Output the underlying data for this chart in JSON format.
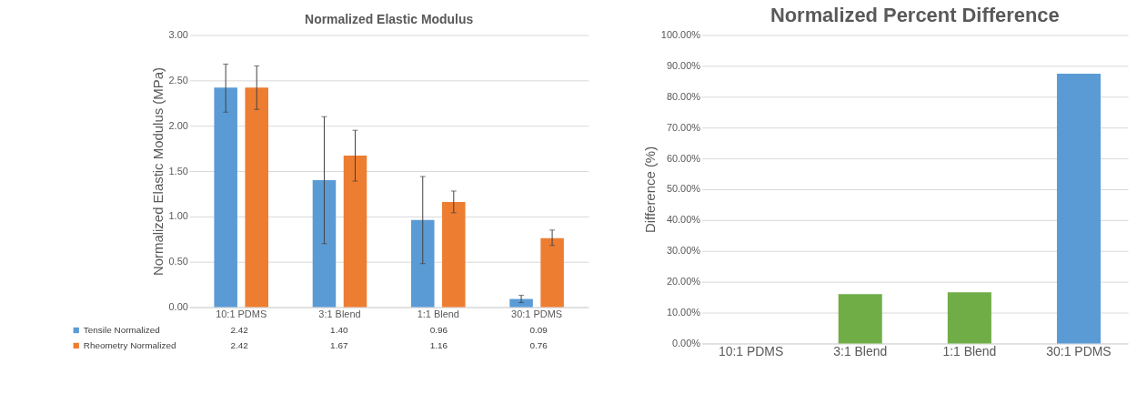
{
  "chart_data": [
    {
      "type": "bar",
      "title": "Normalized Elastic Modulus",
      "ylabel": "Normalized Elastic Modulus (MPa)",
      "categories": [
        "10:1 PDMS",
        "3:1 Blend",
        "1:1 Blend",
        "30:1 PDMS"
      ],
      "series": [
        {
          "name": "Tensile Normalized",
          "color": "#5b9bd5",
          "values": [
            2.42,
            1.4,
            0.96,
            0.09
          ],
          "value_labels": [
            "2.42",
            "1.40",
            "0.96",
            "0.09"
          ],
          "errors": [
            [
              2.15,
              2.68
            ],
            [
              0.7,
              2.1
            ],
            [
              0.48,
              1.44
            ],
            [
              0.05,
              0.13
            ]
          ]
        },
        {
          "name": "Rheometry Normalized",
          "color": "#ed7d31",
          "values": [
            2.42,
            1.67,
            1.16,
            0.76
          ],
          "value_labels": [
            "2.42",
            "1.67",
            "1.16",
            "0.76"
          ],
          "errors": [
            [
              2.18,
              2.66
            ],
            [
              1.39,
              1.95
            ],
            [
              1.04,
              1.28
            ],
            [
              0.68,
              0.85
            ]
          ]
        }
      ],
      "ylim": [
        0,
        3
      ],
      "yticks": [
        {
          "value": 0,
          "label": "0.00"
        },
        {
          "value": 0.5,
          "label": "0.50"
        },
        {
          "value": 1,
          "label": "1.00"
        },
        {
          "value": 1.5,
          "label": "1.50"
        },
        {
          "value": 2,
          "label": "2.00"
        },
        {
          "value": 2.5,
          "label": "2.50"
        },
        {
          "value": 3,
          "label": "3.00"
        }
      ],
      "grid": "y",
      "legend": "bottom"
    },
    {
      "type": "bar",
      "title": "Normalized Percent Difference",
      "ylabel": "Difference (%)",
      "categories": [
        "10:1 PDMS",
        "3:1 Blend",
        "1:1 Blend",
        "30:1 PDMS"
      ],
      "values": [
        0,
        16,
        16.6,
        87.5
      ],
      "colors": [
        "#5b9bd5",
        "#70ad47",
        "#70ad47",
        "#5b9bd5"
      ],
      "ylim": [
        0,
        100
      ],
      "yticks": [
        {
          "value": 0,
          "label": "0.00%"
        },
        {
          "value": 10,
          "label": "10.00%"
        },
        {
          "value": 20,
          "label": "20.00%"
        },
        {
          "value": 30,
          "label": "30.00%"
        },
        {
          "value": 40,
          "label": "40.00%"
        },
        {
          "value": 50,
          "label": "50.00%"
        },
        {
          "value": 60,
          "label": "60.00%"
        },
        {
          "value": 70,
          "label": "70.00%"
        },
        {
          "value": 80,
          "label": "80.00%"
        },
        {
          "value": 90,
          "label": "90.00%"
        },
        {
          "value": 100,
          "label": "100.00%"
        }
      ],
      "grid": "y"
    }
  ]
}
